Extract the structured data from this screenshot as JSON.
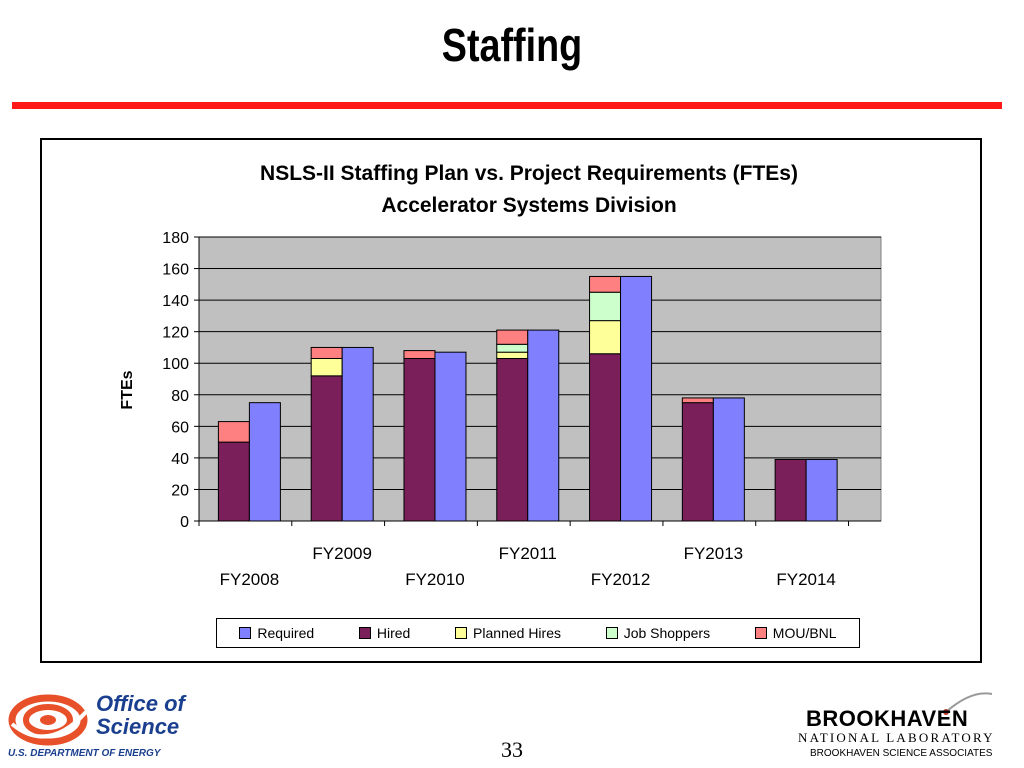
{
  "slide": {
    "title": "Staffing",
    "page_number": "33",
    "footer_left": {
      "logo_line1": "Office of",
      "logo_line2": "Science",
      "subline": "U.S. DEPARTMENT OF ENERGY"
    },
    "footer_right": {
      "logo_main": "BROOKHAVEN",
      "logo_sub": "NATIONAL LABORATORY",
      "associates": "BROOKHAVEN SCIENCE ASSOCIATES"
    },
    "colors": {
      "title_rule": "#ff1a1a",
      "plot_bg": "#c0c0c0",
      "doe_blue": "#1b3f8f"
    }
  },
  "chart_data": {
    "type": "bar",
    "title": "NSLS-II Staffing Plan vs. Project Requirements (FTEs)",
    "subtitle": "Accelerator Systems Division",
    "xlabel": "",
    "ylabel": "FTEs",
    "ylim": [
      0,
      180
    ],
    "yticks": [
      "0",
      "20",
      "40",
      "60",
      "80",
      "100",
      "120",
      "140",
      "160",
      "180"
    ],
    "categories": [
      "FY2008",
      "FY2009",
      "FY2010",
      "FY2011",
      "FY2012",
      "FY2013",
      "FY2014"
    ],
    "grid": true,
    "legend_position": "bottom",
    "stacked_series": [
      {
        "name": "Hired",
        "color": "#7b1f5a",
        "values": [
          50,
          92,
          103,
          103,
          106,
          75,
          39
        ]
      },
      {
        "name": "Planned Hires",
        "color": "#ffff99",
        "values": [
          0,
          11,
          0,
          4,
          21,
          0,
          0
        ]
      },
      {
        "name": "Job Shoppers",
        "color": "#ccffcc",
        "values": [
          0,
          0,
          0,
          5,
          18,
          0,
          0
        ]
      },
      {
        "name": "MOU/BNL",
        "color": "#ff8080",
        "values": [
          13,
          7,
          5,
          9,
          10,
          3,
          0
        ]
      }
    ],
    "required_series": {
      "name": "Required",
      "color": "#8080ff",
      "values": [
        75,
        110,
        107,
        121,
        155,
        78,
        39
      ]
    },
    "legend": [
      {
        "name": "Required",
        "color": "#8080ff"
      },
      {
        "name": "Hired",
        "color": "#7b1f5a"
      },
      {
        "name": "Planned Hires",
        "color": "#ffff99"
      },
      {
        "name": "Job Shoppers",
        "color": "#ccffcc"
      },
      {
        "name": "MOU/BNL",
        "color": "#ff8080"
      }
    ]
  }
}
